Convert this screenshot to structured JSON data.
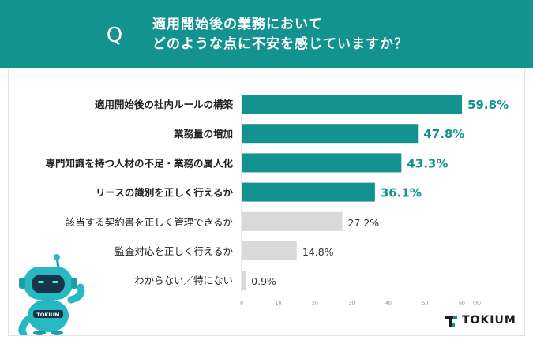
{
  "header": {
    "q_mark": "Q",
    "title_line1": "適用開始後の業務において",
    "title_line2": "どのような点に不安を感じていますか？"
  },
  "colors": {
    "header_bg": "#14928f",
    "accent": "#14928f",
    "muted_bar": "#d9d9d9",
    "text": "#333333"
  },
  "chart_data": {
    "type": "bar",
    "orientation": "horizontal",
    "categories": [
      "適用開始後の社内ルールの構築",
      "業務量の増加",
      "専門知識を持つ人材の不足・業務の属人化",
      "リースの識別を正しく行えるか",
      "該当する契約書を正しく管理できるか",
      "監査対応を正しく行えるか",
      "わからない／特にない"
    ],
    "values": [
      59.8,
      47.8,
      43.3,
      36.1,
      27.2,
      14.8,
      0.9
    ],
    "value_labels": [
      "59.8%",
      "47.8%",
      "43.3%",
      "36.1%",
      "27.2%",
      "14.8%",
      "0.9%"
    ],
    "highlighted": [
      true,
      true,
      true,
      true,
      false,
      false,
      false
    ],
    "xticks": [
      "0",
      "10",
      "20",
      "30",
      "40",
      "50",
      "60"
    ],
    "xunit": "（%）",
    "xlim": [
      0,
      60
    ],
    "grid": false
  },
  "robot": {
    "badge": "TOKIUM",
    "icon": "robot-mascot-icon"
  },
  "logo": {
    "text": "TOKIUM",
    "icon": "tokium-t-logo-icon"
  }
}
